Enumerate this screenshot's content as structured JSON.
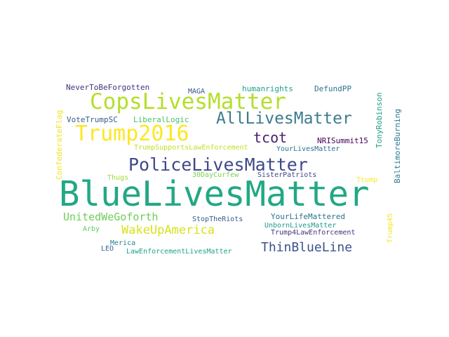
{
  "words": [
    {
      "text": "BlueLivesMatter",
      "color": "#22a884"
    },
    {
      "text": "CopsLivesMatter",
      "color": "#b5de2b"
    },
    {
      "text": "AllLivesMatter",
      "color": "#3b7c8c"
    },
    {
      "text": "Trump2016",
      "color": "#fde725"
    },
    {
      "text": "PoliceLivesMatter",
      "color": "#3e4989"
    },
    {
      "text": "tcot",
      "color": "#481f70"
    },
    {
      "text": "ThinBlueLine",
      "color": "#3a548c"
    },
    {
      "text": "WakeUpAmerica",
      "color": "#d8e219"
    },
    {
      "text": "UnitedWeGoforth",
      "color": "#6ece58"
    },
    {
      "text": "NeverToBeForgotten",
      "color": "#46327e"
    },
    {
      "text": "MAGA",
      "color": "#39568c"
    },
    {
      "text": "humanrights",
      "color": "#1fa187"
    },
    {
      "text": "DefundPP",
      "color": "#2c728e"
    },
    {
      "text": "TonyRobinson",
      "color": "#1f9e89"
    },
    {
      "text": "BaltimoreBurning",
      "color": "#2a788e"
    },
    {
      "text": "ConfederateFlag",
      "color": "#f1e51d"
    },
    {
      "text": "VoteTrumpSC",
      "color": "#355f8d"
    },
    {
      "text": "LiberalLogic",
      "color": "#4ac16d"
    },
    {
      "text": "NRISummit15",
      "color": "#440154"
    },
    {
      "text": "TrumpSupportsLawEnforcement",
      "color": "#c0df25"
    },
    {
      "text": "YourLivesMatter",
      "color": "#2d708e"
    },
    {
      "text": "Thugs",
      "color": "#a0da39"
    },
    {
      "text": "30DayCurfew",
      "color": "#7ad151"
    },
    {
      "text": "SisterPatriots",
      "color": "#414487"
    },
    {
      "text": "Trump",
      "color": "#fbe723"
    },
    {
      "text": "YourLifeMattered",
      "color": "#2c728e"
    },
    {
      "text": "Arby",
      "color": "#5ec962"
    },
    {
      "text": "StopTheRiots",
      "color": "#375a8c"
    },
    {
      "text": "UnbornLivesMatter",
      "color": "#1f988b"
    },
    {
      "text": "Trump4LawEnforcement",
      "color": "#46337e"
    },
    {
      "text": "Trump45",
      "color": "#f4e61e"
    },
    {
      "text": "Merica",
      "color": "#27808e"
    },
    {
      "text": "LEO",
      "color": "#31688e"
    },
    {
      "text": "LawEnforcementLivesMatter",
      "color": "#20a386"
    }
  ]
}
